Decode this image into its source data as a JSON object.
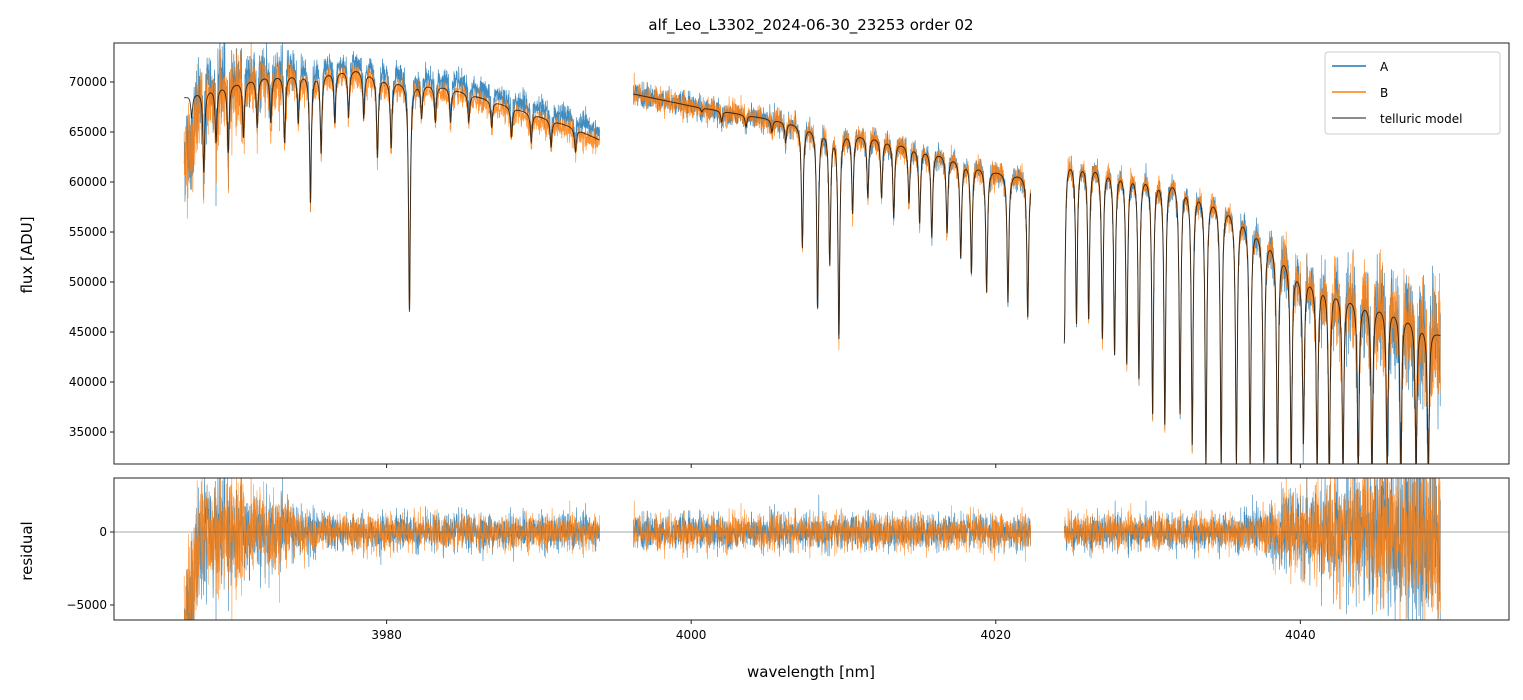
{
  "chart_data": [
    {
      "type": "line",
      "title": "alf_Leo_L3302_2024-06-30_23253  order 02",
      "xlabel": "",
      "ylabel": "flux [ADU]",
      "xlim": [
        3962.1,
        4053.7
      ],
      "ylim": [
        31800,
        73900
      ],
      "yticks": [
        35000,
        40000,
        45000,
        50000,
        55000,
        60000,
        65000,
        70000
      ],
      "ytick_labels": [
        "35000",
        "40000",
        "45000",
        "50000",
        "55000",
        "60000",
        "65000",
        "70000"
      ],
      "xticks": [
        3980,
        4000,
        4020,
        4040
      ],
      "legend": {
        "placement": "top-right",
        "entries": [
          "A",
          "B",
          "telluric model"
        ]
      },
      "colors": {
        "A": "#1f77b4",
        "B": "#ff7f0e",
        "telluric model": "#555555"
      },
      "segments": [
        {
          "range": [
            3966.7,
            3994.0
          ],
          "continuum": [
            [
              3966.7,
              68500
            ],
            [
              3968,
              69200
            ],
            [
              3972,
              70600
            ],
            [
              3976,
              71000
            ],
            [
              3978,
              71300
            ],
            [
              3980,
              70300
            ],
            [
              3984,
              69500
            ],
            [
              3988,
              67600
            ],
            [
              3992,
              65600
            ],
            [
              3994,
              64200
            ]
          ],
          "lines": [
            [
              3967.2,
              66500
            ],
            [
              3968.0,
              61000
            ],
            [
              3968.8,
              64000
            ],
            [
              3969.6,
              63000
            ],
            [
              3970.6,
              64500
            ],
            [
              3971.5,
              65500
            ],
            [
              3972.4,
              66000
            ],
            [
              3973.3,
              64000
            ],
            [
              3974.2,
              66000
            ],
            [
              3975.0,
              58000
            ],
            [
              3975.7,
              63000
            ],
            [
              3976.6,
              66000
            ],
            [
              3977.5,
              66500
            ],
            [
              3978.5,
              66500
            ],
            [
              3979.4,
              62500
            ],
            [
              3980.3,
              63500
            ],
            [
              3981.5,
              47000
            ],
            [
              3982.3,
              66500
            ],
            [
              3983.2,
              66000
            ],
            [
              3984.2,
              66000
            ],
            [
              3985.4,
              66000
            ],
            [
              3986.9,
              65500
            ],
            [
              3988.2,
              64500
            ],
            [
              3989.5,
              64000
            ],
            [
              3990.8,
              63500
            ],
            [
              3992.4,
              63000
            ]
          ]
        },
        {
          "range": [
            3996.2,
            4022.3
          ],
          "continuum": [
            [
              3996.2,
              68800
            ],
            [
              4000,
              67600
            ],
            [
              4004,
              66600
            ],
            [
              4008,
              65600
            ],
            [
              4012,
              64600
            ],
            [
              4016,
              63100
            ],
            [
              4020,
              61200
            ],
            [
              4022.3,
              60600
            ]
          ],
          "lines": [
            [
              4000.7,
              67000
            ],
            [
              4002.0,
              66000
            ],
            [
              4003.6,
              65500
            ],
            [
              4005.3,
              65000
            ],
            [
              4006.2,
              64000
            ],
            [
              4007.3,
              53500
            ],
            [
              4008.3,
              47500
            ],
            [
              4009.1,
              52000
            ],
            [
              4009.7,
              44500
            ],
            [
              4010.6,
              57000
            ],
            [
              4011.6,
              58500
            ],
            [
              4012.5,
              58500
            ],
            [
              4013.3,
              56500
            ],
            [
              4014.3,
              58000
            ],
            [
              4015.0,
              56000
            ],
            [
              4015.8,
              54500
            ],
            [
              4016.8,
              55000
            ],
            [
              4017.7,
              52500
            ],
            [
              4018.4,
              51000
            ],
            [
              4019.4,
              49000
            ],
            [
              4020.8,
              48000
            ],
            [
              4022.1,
              46500
            ]
          ]
        },
        {
          "range": [
            4024.5,
            4049.2
          ],
          "continuum": [
            [
              4024.5,
              62500
            ],
            [
              4028,
              61500
            ],
            [
              4032,
              60500
            ],
            [
              4034,
              59000
            ],
            [
              4036,
              57200
            ],
            [
              4038,
              54500
            ],
            [
              4040,
              51000
            ],
            [
              4044,
              48200
            ],
            [
              4046,
              47500
            ],
            [
              4049.2,
              44800
            ]
          ],
          "lines": [
            [
              4024.5,
              44000
            ],
            [
              4025.3,
              46000
            ],
            [
              4026.1,
              46500
            ],
            [
              4027.0,
              44500
            ],
            [
              4027.8,
              43000
            ],
            [
              4028.6,
              42000
            ],
            [
              4029.4,
              40500
            ],
            [
              4030.3,
              37000
            ],
            [
              4031.1,
              36000
            ],
            [
              4032.1,
              37000
            ],
            [
              4032.9,
              34000
            ],
            [
              4033.8,
              31800
            ],
            [
              4034.8,
              32000
            ],
            [
              4035.8,
              32000
            ],
            [
              4036.7,
              32000
            ],
            [
              4037.6,
              32000
            ],
            [
              4038.5,
              31000
            ],
            [
              4039.4,
              31000
            ],
            [
              4040.2,
              34000
            ],
            [
              4041.1,
              31000
            ],
            [
              4041.9,
              31000
            ],
            [
              4042.8,
              31000
            ],
            [
              4043.8,
              31000
            ],
            [
              4044.7,
              31000
            ],
            [
              4045.7,
              31000
            ],
            [
              4046.6,
              31000
            ],
            [
              4047.6,
              31000
            ],
            [
              4048.4,
              31000
            ]
          ]
        }
      ]
    },
    {
      "type": "line",
      "xlabel": "wavelength [nm]",
      "ylabel": "residual",
      "xlim": [
        3962.1,
        4053.7
      ],
      "ylim": [
        -6030,
        3700
      ],
      "yticks": [
        -5000,
        0
      ],
      "ytick_labels": [
        "−5000",
        "0"
      ],
      "xticks": [
        3980,
        4000,
        4020,
        4040
      ],
      "xtick_labels": [
        "3980",
        "4000",
        "4020",
        "4040"
      ],
      "series": [
        "A - model",
        "B - model"
      ],
      "zero_line": 0
    }
  ]
}
